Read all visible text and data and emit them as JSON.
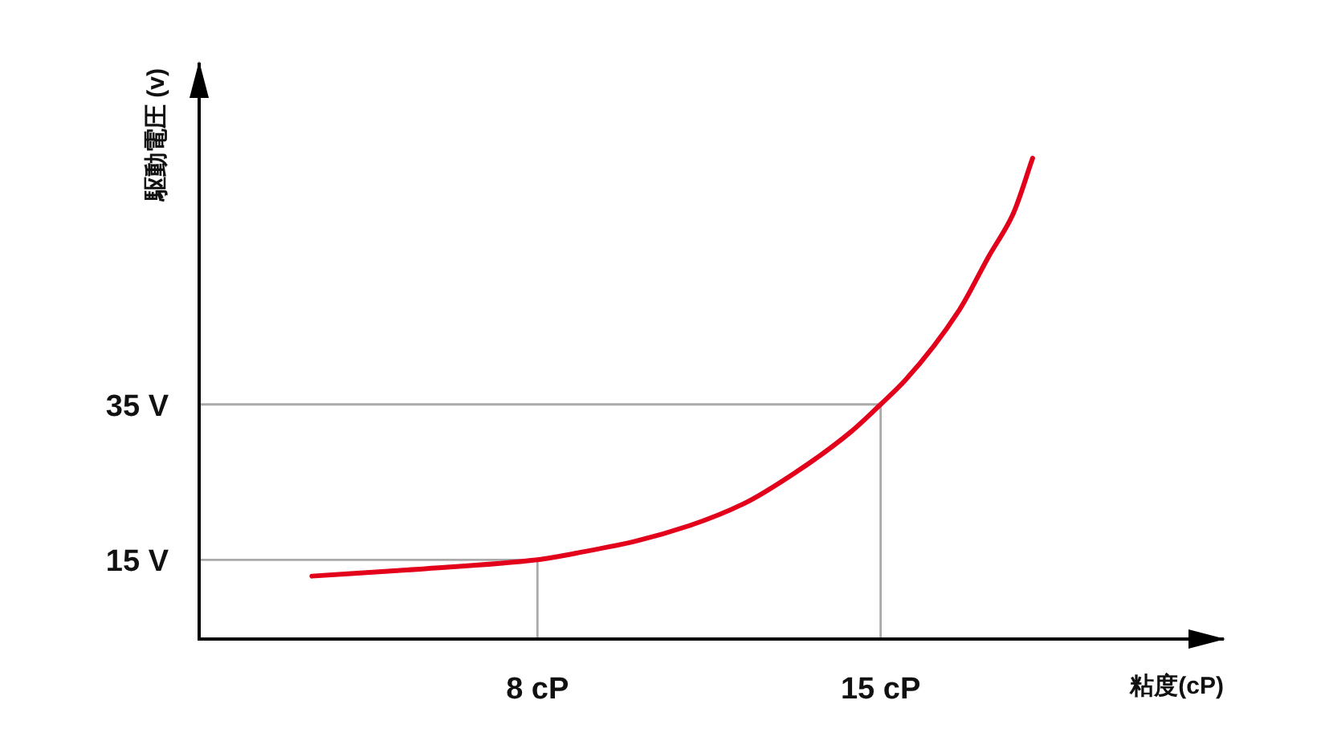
{
  "chart_data": {
    "type": "line",
    "xlabel": "粘度(cP)",
    "ylabel": "駆動電圧 (v)",
    "xlim": [
      1.1,
      22
    ],
    "ylim": [
      4.8,
      79
    ],
    "xticks": [
      {
        "value": 8,
        "label": "8 cP"
      },
      {
        "value": 15,
        "label": "15 cP"
      }
    ],
    "yticks": [
      {
        "value": 15,
        "label": "15 V"
      },
      {
        "value": 35,
        "label": "35 V"
      }
    ],
    "series": [
      {
        "color": "#aaaaaa",
        "x": [
          1.1,
          8,
          8
        ],
        "values": [
          15,
          15,
          4.8
        ]
      },
      {
        "color": "#aaaaaa",
        "x": [
          1.1,
          15,
          15
        ],
        "values": [
          35,
          35,
          4.8
        ]
      },
      {
        "color": "#e3001b",
        "x": [
          3.4,
          5.6,
          8,
          9,
          10,
          11.1,
          12.2,
          13.3,
          14.4,
          15,
          15.5,
          16.6,
          17.2,
          17.7,
          18.1
        ],
        "values": [
          12.9,
          13.8,
          15,
          16.1,
          17.4,
          19.4,
          22.2,
          26.4,
          31.5,
          35,
          38.1,
          47.1,
          54,
          59.5,
          66.7
        ]
      }
    ]
  }
}
